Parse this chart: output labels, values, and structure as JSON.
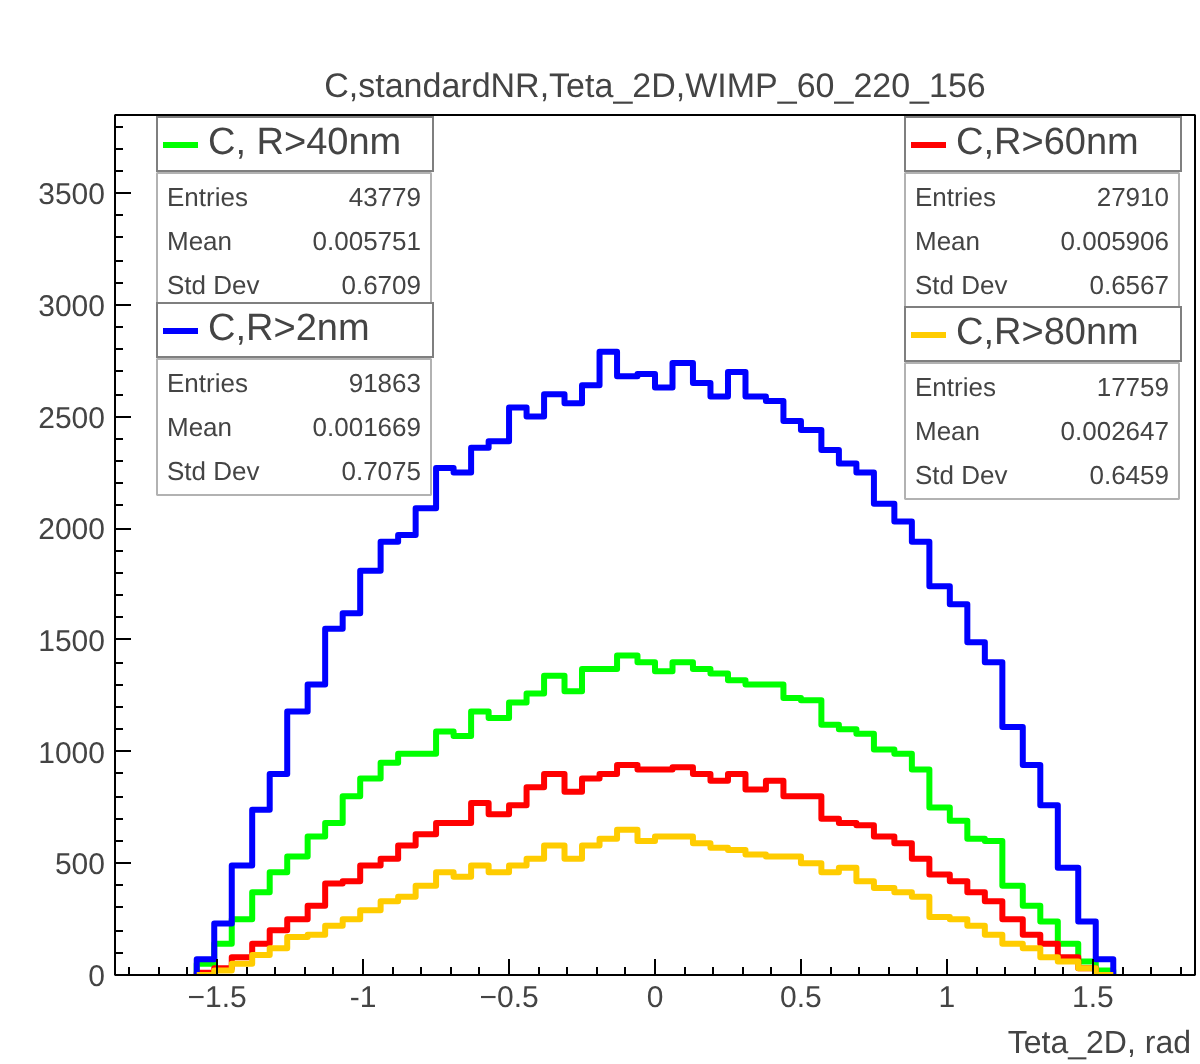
{
  "chart_data": {
    "type": "histogram",
    "title": "C,standardNR,Teta_2D,WIMP_60_220_156",
    "xlabel": "Teta_2D, rad",
    "bins": [
      -1.57,
      -1.51,
      -1.45,
      -1.38,
      -1.32,
      -1.26,
      -1.19,
      -1.13,
      -1.07,
      -1.01,
      -0.94,
      -0.88,
      -0.82,
      -0.75,
      -0.69,
      -0.63,
      -0.57,
      -0.5,
      -0.44,
      -0.38,
      -0.31,
      -0.25,
      -0.19,
      -0.13,
      -0.06,
      0,
      0.06,
      0.13,
      0.19,
      0.25,
      0.31,
      0.38,
      0.44,
      0.5,
      0.57,
      0.63,
      0.69,
      0.75,
      0.82,
      0.88,
      0.94,
      1.01,
      1.07,
      1.13,
      1.19,
      1.26,
      1.32,
      1.38,
      1.45,
      1.51,
      1.57
    ],
    "series": [
      {
        "name": "C, R>40nm",
        "color": "#00ff00",
        "values": [
          50,
          140,
          250,
          370,
          460,
          530,
          620,
          680,
          800,
          880,
          950,
          990,
          990,
          1090,
          1070,
          1180,
          1150,
          1220,
          1260,
          1340,
          1270,
          1370,
          1370,
          1430,
          1400,
          1360,
          1400,
          1370,
          1350,
          1320,
          1300,
          1300,
          1240,
          1230,
          1120,
          1100,
          1080,
          1010,
          990,
          920,
          750,
          690,
          610,
          600,
          400,
          310,
          240,
          140,
          60,
          20
        ]
      },
      {
        "name": "C,R>60nm",
        "color": "#ff0000",
        "values": [
          10,
          30,
          80,
          140,
          200,
          250,
          310,
          410,
          420,
          490,
          520,
          580,
          630,
          680,
          680,
          770,
          720,
          760,
          840,
          900,
          820,
          880,
          900,
          940,
          920,
          920,
          930,
          900,
          870,
          900,
          830,
          870,
          800,
          800,
          700,
          680,
          670,
          620,
          590,
          520,
          450,
          420,
          370,
          330,
          250,
          180,
          140,
          80,
          30,
          0
        ]
      },
      {
        "name": "C,R>2nm",
        "color": "#0000ff",
        "values": [
          70,
          230,
          490,
          740,
          900,
          1180,
          1300,
          1550,
          1620,
          1810,
          1940,
          1970,
          2090,
          2270,
          2250,
          2360,
          2390,
          2540,
          2500,
          2600,
          2560,
          2640,
          2790,
          2680,
          2690,
          2630,
          2740,
          2650,
          2590,
          2700,
          2590,
          2570,
          2480,
          2440,
          2350,
          2290,
          2250,
          2110,
          2030,
          1940,
          1740,
          1660,
          1490,
          1400,
          1110,
          940,
          760,
          480,
          240,
          70
        ]
      },
      {
        "name": "C,R>80nm",
        "color": "#ffcc00",
        "values": [
          0,
          20,
          50,
          90,
          120,
          170,
          180,
          220,
          250,
          290,
          330,
          350,
          400,
          460,
          440,
          490,
          460,
          490,
          520,
          580,
          520,
          580,
          610,
          650,
          600,
          620,
          620,
          590,
          570,
          560,
          540,
          530,
          530,
          500,
          460,
          480,
          420,
          390,
          370,
          350,
          260,
          250,
          220,
          180,
          140,
          120,
          80,
          60,
          30,
          0
        ]
      }
    ],
    "annotations": [
      "Entries",
      "43779",
      "Mean",
      "0.005751",
      "Std Dev",
      "0.6709",
      "Entries",
      "27910",
      "Mean",
      "0.005906",
      "Std Dev",
      "0.6567",
      "Entries",
      "91863",
      "Mean",
      "0.001669",
      "Std Dev",
      "0.7075",
      "Entries",
      "17759",
      "Mean",
      "0.002647",
      "Std Dev",
      "0.6459"
    ],
    "xlim": [
      -1.85,
      1.85
    ],
    "ylim": [
      0,
      3850
    ],
    "xticks": [
      -1.5,
      -1,
      -0.5,
      0,
      0.5,
      1,
      1.5
    ],
    "yticks": [
      0,
      500,
      1000,
      1500,
      2000,
      2500,
      3000,
      3500
    ],
    "grid": false,
    "legend": "top"
  }
}
